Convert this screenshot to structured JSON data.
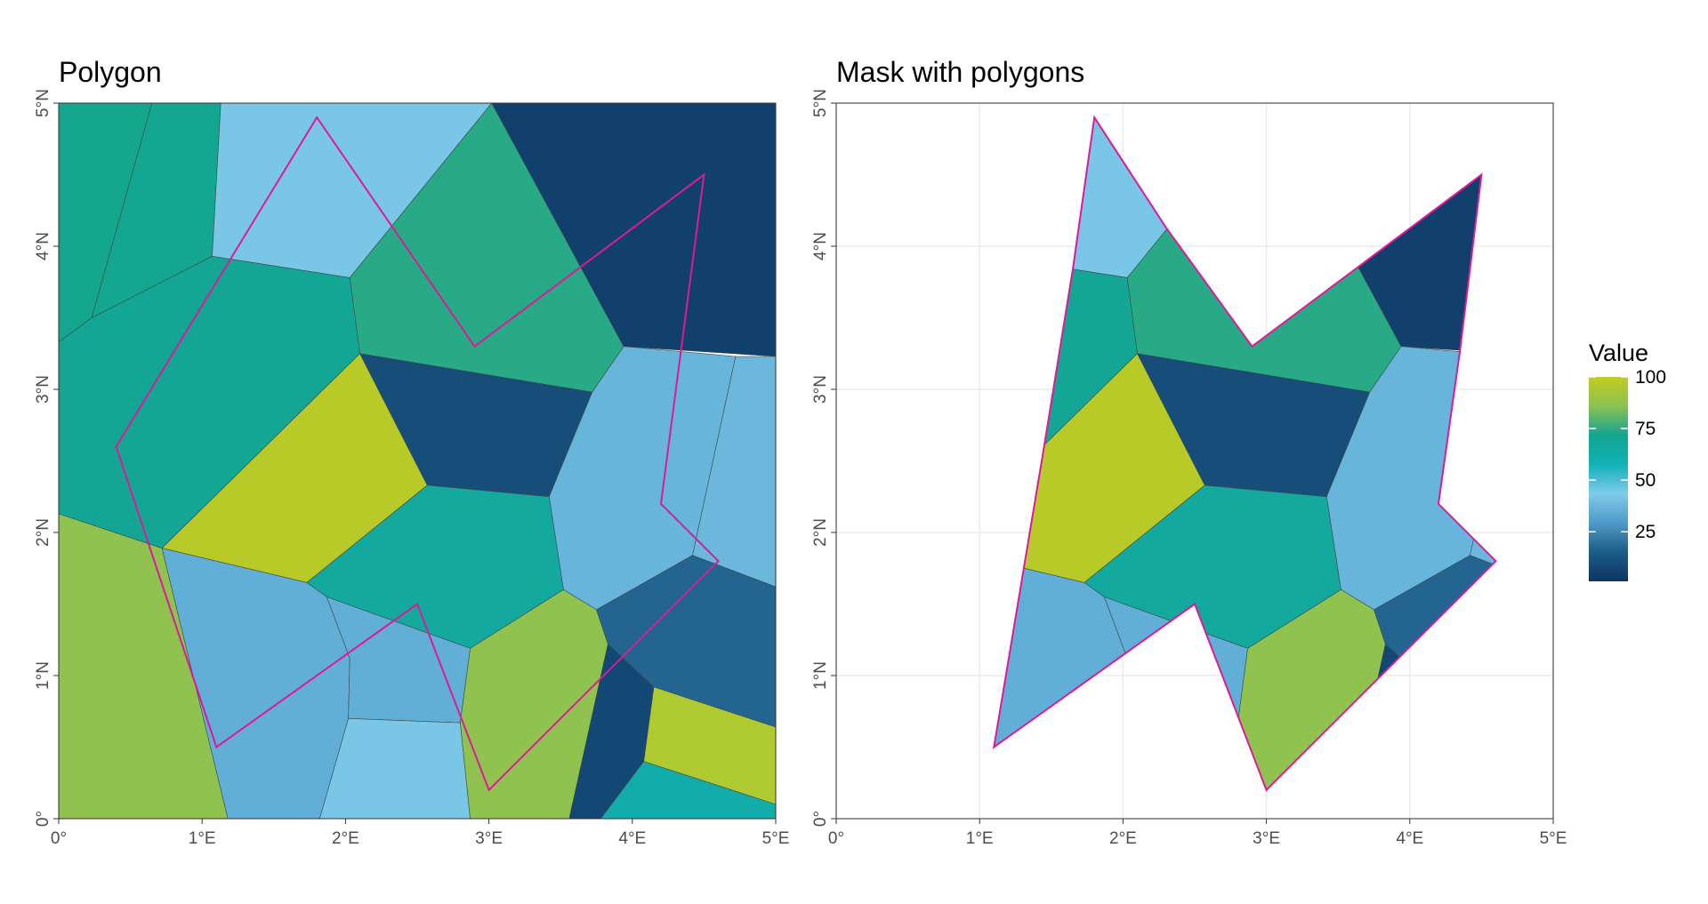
{
  "chart_data": [
    {
      "type": "map",
      "title": "Polygon",
      "x_ticks": [
        0,
        1,
        2,
        3,
        4,
        5
      ],
      "y_ticks": [
        0,
        1,
        2,
        3,
        4,
        5
      ],
      "x_tick_labels": [
        "0°",
        "1°E",
        "2°E",
        "3°E",
        "4°E",
        "5°E"
      ],
      "y_tick_labels": [
        "0°",
        "1°N",
        "2°N",
        "3°N",
        "4°N",
        "5°N"
      ],
      "xlim": [
        0,
        5
      ],
      "ylim": [
        0,
        5
      ],
      "grid": false,
      "cells": [
        {
          "value": 72,
          "coords": [
            [
              0,
              5
            ],
            [
              0.65,
              5
            ],
            [
              0.23,
              3.5
            ],
            [
              0,
              3.33
            ]
          ]
        },
        {
          "value": 71,
          "coords": [
            [
              0.65,
              5
            ],
            [
              1.13,
              5
            ],
            [
              1.07,
              3.93
            ],
            [
              0.23,
              3.5
            ]
          ]
        },
        {
          "value": 42,
          "coords": [
            [
              1.13,
              5
            ],
            [
              3.02,
              5
            ],
            [
              2.03,
              3.78
            ],
            [
              1.07,
              3.93
            ]
          ]
        },
        {
          "value": 74,
          "coords": [
            [
              3.02,
              5
            ],
            [
              3.94,
              3.3
            ],
            [
              3.72,
              2.98
            ],
            [
              2.1,
              3.25
            ],
            [
              2.03,
              3.78
            ]
          ]
        },
        {
          "value": 5,
          "coords": [
            [
              3.02,
              5
            ],
            [
              5,
              5
            ],
            [
              5,
              3.23
            ],
            [
              3.94,
              3.3
            ]
          ]
        },
        {
          "value": 70,
          "coords": [
            [
              0,
              3.33
            ],
            [
              0.23,
              3.5
            ],
            [
              1.07,
              3.93
            ],
            [
              2.03,
              3.78
            ],
            [
              2.1,
              3.25
            ],
            [
              0.72,
              1.89
            ],
            [
              0,
              2.13
            ]
          ]
        },
        {
          "value": 97,
          "coords": [
            [
              0.72,
              1.89
            ],
            [
              2.1,
              3.25
            ],
            [
              2.57,
              2.33
            ],
            [
              1.73,
              1.65
            ]
          ]
        },
        {
          "value": 10,
          "coords": [
            [
              2.1,
              3.25
            ],
            [
              3.72,
              2.98
            ],
            [
              3.42,
              2.25
            ],
            [
              2.57,
              2.33
            ]
          ]
        },
        {
          "value": 37,
          "coords": [
            [
              3.72,
              2.98
            ],
            [
              3.94,
              3.3
            ],
            [
              4.72,
              3.23
            ],
            [
              4.42,
              1.84
            ],
            [
              3.75,
              1.46
            ],
            [
              3.52,
              1.6
            ],
            [
              3.42,
              2.25
            ]
          ]
        },
        {
          "value": 38,
          "coords": [
            [
              4.72,
              3.23
            ],
            [
              5,
              3.23
            ],
            [
              5,
              1.62
            ],
            [
              4.42,
              1.84
            ]
          ]
        },
        {
          "value": 66,
          "coords": [
            [
              1.73,
              1.65
            ],
            [
              2.57,
              2.33
            ],
            [
              3.42,
              2.25
            ],
            [
              3.52,
              1.6
            ],
            [
              2.87,
              1.19
            ],
            [
              1.87,
              1.55
            ]
          ]
        },
        {
          "value": 87,
          "coords": [
            [
              0,
              2.13
            ],
            [
              0.72,
              1.89
            ],
            [
              1.18,
              0
            ],
            [
              0,
              0
            ]
          ]
        },
        {
          "value": 35,
          "coords": [
            [
              0.72,
              1.89
            ],
            [
              1.73,
              1.65
            ],
            [
              1.87,
              1.55
            ],
            [
              2.03,
              1.12
            ],
            [
              2.02,
              0.7
            ],
            [
              1.82,
              0
            ],
            [
              1.18,
              0
            ]
          ]
        },
        {
          "value": 35,
          "coords": [
            [
              1.87,
              1.55
            ],
            [
              2.87,
              1.19
            ],
            [
              2.8,
              0.67
            ],
            [
              2.02,
              0.7
            ],
            [
              2.03,
              1.12
            ]
          ]
        },
        {
          "value": 42,
          "coords": [
            [
              2.02,
              0.7
            ],
            [
              2.8,
              0.67
            ],
            [
              2.87,
              0
            ],
            [
              1.82,
              0
            ]
          ]
        },
        {
          "value": 87,
          "coords": [
            [
              2.87,
              1.19
            ],
            [
              3.52,
              1.6
            ],
            [
              3.75,
              1.46
            ],
            [
              3.83,
              1.22
            ],
            [
              3.56,
              0
            ],
            [
              2.87,
              0
            ],
            [
              2.8,
              0.67
            ]
          ]
        },
        {
          "value": 17,
          "coords": [
            [
              3.75,
              1.46
            ],
            [
              4.42,
              1.84
            ],
            [
              5,
              1.62
            ],
            [
              5,
              0.64
            ],
            [
              4.15,
              0.92
            ],
            [
              3.83,
              1.22
            ]
          ]
        },
        {
          "value": 8,
          "coords": [
            [
              3.83,
              1.22
            ],
            [
              4.15,
              0.92
            ],
            [
              4.08,
              0.4
            ],
            [
              3.78,
              0
            ],
            [
              3.56,
              0
            ]
          ]
        },
        {
          "value": 95,
          "coords": [
            [
              4.15,
              0.92
            ],
            [
              5,
              0.64
            ],
            [
              5,
              0.1
            ],
            [
              4.08,
              0.4
            ]
          ]
        },
        {
          "value": 62,
          "coords": [
            [
              4.08,
              0.4
            ],
            [
              5,
              0.1
            ],
            [
              5,
              0
            ],
            [
              3.78,
              0
            ]
          ]
        }
      ],
      "mask_polygon": [
        [
          1.8,
          4.9
        ],
        [
          2.9,
          3.3
        ],
        [
          4.5,
          4.5
        ],
        [
          4.2,
          2.2
        ],
        [
          4.6,
          1.8
        ],
        [
          3,
          0.2
        ],
        [
          2.5,
          1.5
        ],
        [
          1.1,
          0.5
        ],
        [
          0.4,
          2.6
        ]
      ]
    },
    {
      "type": "map",
      "title": "Mask with polygons",
      "x_ticks": [
        0,
        1,
        2,
        3,
        4,
        5
      ],
      "y_ticks": [
        0,
        1,
        2,
        3,
        4,
        5
      ],
      "x_tick_labels": [
        "0°",
        "1°E",
        "2°E",
        "3°E",
        "4°E",
        "5°E"
      ],
      "y_tick_labels": [
        "0°",
        "1°N",
        "2°N",
        "3°N",
        "4°N",
        "5°N"
      ],
      "xlim": [
        0,
        5
      ],
      "ylim": [
        0,
        5
      ],
      "grid": true,
      "mask_polygon": [
        [
          1.8,
          4.9
        ],
        [
          2.3,
          4.13
        ],
        [
          2.9,
          3.3
        ],
        [
          3.7,
          3.9
        ],
        [
          4.5,
          4.5
        ],
        [
          4.35,
          3.27
        ],
        [
          4.2,
          2.2
        ],
        [
          4.6,
          1.8
        ],
        [
          3,
          0.2
        ],
        [
          2.5,
          1.5
        ],
        [
          1.1,
          0.5
        ],
        [
          1.45,
          2.6
        ],
        [
          1.65,
          3.84
        ]
      ]
    }
  ],
  "legend": {
    "title": "Value",
    "ticks": [
      100,
      75,
      50,
      25
    ],
    "tick_labels": [
      "100",
      "75",
      "50",
      "25"
    ],
    "range": [
      1,
      100
    ],
    "placement": "right",
    "colors": [
      "#0B3560",
      "#1D5C88",
      "#4E9AC8",
      "#7ECBEA",
      "#12B0B7",
      "#13A58F",
      "#8CC154",
      "#C2CD1C"
    ]
  },
  "colors": {
    "outline": "#E0189A",
    "cell_border": "#3a4a4a",
    "grid": "#ebebeb",
    "frame": "#333333"
  }
}
